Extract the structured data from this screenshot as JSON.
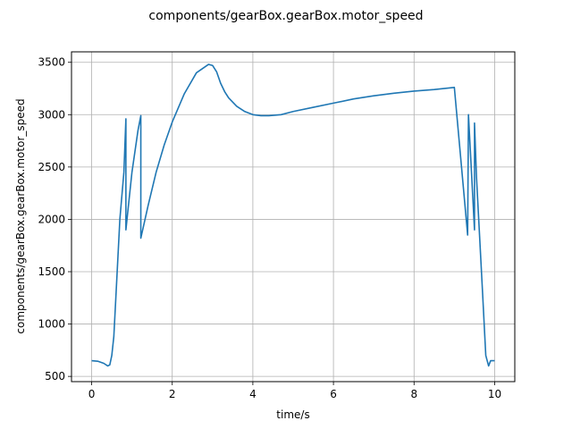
{
  "chart_data": {
    "type": "line",
    "title": "components/gearBox.gearBox.motor_speed",
    "xlabel": "time/s",
    "ylabel": "components/gearBox.gearBox.motor_speed",
    "xlim": [
      -0.5,
      10.5
    ],
    "ylim": [
      450,
      3600
    ],
    "grid": true,
    "x_ticks": [
      0,
      2,
      4,
      6,
      8,
      10
    ],
    "y_ticks": [
      500,
      1000,
      1500,
      2000,
      2500,
      3000,
      3500
    ],
    "line_color": "#1f77b4",
    "series": [
      {
        "x": [
          0,
          0.15,
          0.3,
          0.4,
          0.45,
          0.5,
          0.55,
          0.6,
          0.7,
          0.8,
          0.85,
          0.85,
          1.0,
          1.15,
          1.22,
          1.22,
          1.4,
          1.6,
          1.8,
          2.0,
          2.3,
          2.6,
          2.9,
          3.0,
          3.1,
          3.2,
          3.3,
          3.4,
          3.6,
          3.8,
          4.0,
          4.2,
          4.4,
          4.7,
          5.0,
          5.5,
          6.0,
          6.5,
          7.0,
          7.5,
          8.0,
          8.5,
          9.0,
          9.33,
          9.35,
          9.5,
          9.5,
          9.55,
          9.7,
          9.78,
          9.85,
          9.9,
          10.0
        ],
        "y": [
          650,
          645,
          625,
          600,
          610,
          700,
          880,
          1250,
          2000,
          2450,
          2960,
          1900,
          2450,
          2850,
          2990,
          1820,
          2130,
          2450,
          2710,
          2930,
          3200,
          3400,
          3480,
          3470,
          3410,
          3300,
          3220,
          3160,
          3080,
          3030,
          3000,
          2990,
          2990,
          3000,
          3030,
          3070,
          3110,
          3150,
          3180,
          3205,
          3225,
          3240,
          3260,
          1850,
          3000,
          1900,
          2920,
          2400,
          1300,
          700,
          600,
          650,
          650
        ]
      }
    ]
  }
}
